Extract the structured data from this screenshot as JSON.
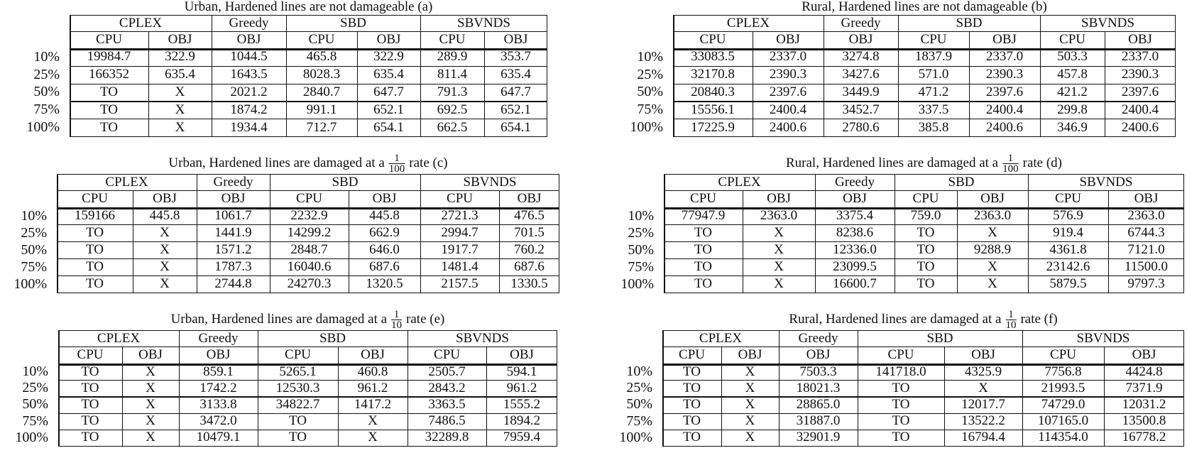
{
  "tables": [
    {
      "title_prefix": "Urban, Hardened lines are not damageable (a)",
      "fraction": null,
      "title_suffix": "",
      "methods": [
        "CPLEX",
        "Greedy",
        "SBD",
        "SBVNDS"
      ],
      "subheaders": [
        "CPU",
        "OBJ",
        "OBJ",
        "CPU",
        "OBJ",
        "CPU",
        "OBJ"
      ],
      "rows": [
        {
          "label": "10%",
          "values": [
            "19984.7",
            "322.9",
            "1044.5",
            "465.8",
            "322.9",
            "289.9",
            "353.7"
          ]
        },
        {
          "label": "25%",
          "values": [
            "166352",
            "635.4",
            "1643.5",
            "8028.3",
            "635.4",
            "811.4",
            "635.4"
          ]
        },
        {
          "label": "50%",
          "values": [
            "TO",
            "X",
            "2021.2",
            "2840.7",
            "647.7",
            "791.3",
            "647.7"
          ]
        },
        {
          "label": "75%",
          "values": [
            "TO",
            "X",
            "1874.2",
            "991.1",
            "652.1",
            "692.5",
            "652.1"
          ]
        },
        {
          "label": "100%",
          "values": [
            "TO",
            "X",
            "1934.4",
            "712.7",
            "654.1",
            "662.5",
            "654.1"
          ]
        }
      ]
    },
    {
      "title_prefix": "Rural, Hardened lines are not damageable (b)",
      "fraction": null,
      "title_suffix": "",
      "methods": [
        "CPLEX",
        "Greedy",
        "SBD",
        "SBVNDS"
      ],
      "subheaders": [
        "CPU",
        "OBJ",
        "OBJ",
        "CPU",
        "OBJ",
        "CPU",
        "OBJ"
      ],
      "rows": [
        {
          "label": "10%",
          "values": [
            "33083.5",
            "2337.0",
            "3274.8",
            "1837.9",
            "2337.0",
            "503.3",
            "2337.0"
          ]
        },
        {
          "label": "25%",
          "values": [
            "32170.8",
            "2390.3",
            "3427.6",
            "571.0",
            "2390.3",
            "457.8",
            "2390.3"
          ]
        },
        {
          "label": "50%",
          "values": [
            "20840.3",
            "2397.6",
            "3449.9",
            "471.2",
            "2397.6",
            "421.2",
            "2397.6"
          ]
        },
        {
          "label": "75%",
          "values": [
            "15556.1",
            "2400.4",
            "3452.7",
            "337.5",
            "2400.4",
            "299.8",
            "2400.4"
          ]
        },
        {
          "label": "100%",
          "values": [
            "17225.9",
            "2400.6",
            "2780.6",
            "385.8",
            "2400.6",
            "346.9",
            "2400.6"
          ]
        }
      ]
    },
    {
      "title_prefix": "Urban, Hardened lines are damaged at a",
      "fraction": {
        "num": "1",
        "den": "100"
      },
      "title_suffix": "rate (c)",
      "methods": [
        "CPLEX",
        "Greedy",
        "SBD",
        "SBVNDS"
      ],
      "subheaders": [
        "CPU",
        "OBJ",
        "OBJ",
        "CPU",
        "OBJ",
        "CPU",
        "OBJ"
      ],
      "rows": [
        {
          "label": "10%",
          "values": [
            "159166",
            "445.8",
            "1061.7",
            "2232.9",
            "445.8",
            "2721.3",
            "476.5"
          ]
        },
        {
          "label": "25%",
          "values": [
            "TO",
            "X",
            "1441.9",
            "14299.2",
            "662.9",
            "2994.7",
            "701.5"
          ]
        },
        {
          "label": "50%",
          "values": [
            "TO",
            "X",
            "1571.2",
            "2848.7",
            "646.0",
            "1917.7",
            "760.2"
          ]
        },
        {
          "label": "75%",
          "values": [
            "TO",
            "X",
            "1787.3",
            "16040.6",
            "687.6",
            "1481.4",
            "687.6"
          ]
        },
        {
          "label": "100%",
          "values": [
            "TO",
            "X",
            "2744.8",
            "24270.3",
            "1320.5",
            "2157.5",
            "1330.5"
          ]
        }
      ]
    },
    {
      "title_prefix": "Rural, Hardened lines are damaged at a",
      "fraction": {
        "num": "1",
        "den": "100"
      },
      "title_suffix": "rate (d)",
      "methods": [
        "CPLEX",
        "Greedy",
        "SBD",
        "SBVNDS"
      ],
      "subheaders": [
        "CPU",
        "OBJ",
        "OBJ",
        "CPU",
        "OBJ",
        "CPU",
        "OBJ"
      ],
      "rows": [
        {
          "label": "10%",
          "values": [
            "77947.9",
            "2363.0",
            "3375.4",
            "759.0",
            "2363.0",
            "576.9",
            "2363.0"
          ]
        },
        {
          "label": "25%",
          "values": [
            "TO",
            "X",
            "8238.6",
            "TO",
            "X",
            "919.4",
            "6744.3"
          ]
        },
        {
          "label": "50%",
          "values": [
            "TO",
            "X",
            "12336.0",
            "TO",
            "9288.9",
            "4361.8",
            "7121.0"
          ]
        },
        {
          "label": "75%",
          "values": [
            "TO",
            "X",
            "23099.5",
            "TO",
            "X",
            "23142.6",
            "11500.0"
          ]
        },
        {
          "label": "100%",
          "values": [
            "TO",
            "X",
            "16600.7",
            "TO",
            "X",
            "5879.5",
            "9797.3"
          ]
        }
      ]
    },
    {
      "title_prefix": "Urban, Hardened lines are damaged at a",
      "fraction": {
        "num": "1",
        "den": "10"
      },
      "title_suffix": "rate (e)",
      "methods": [
        "CPLEX",
        "Greedy",
        "SBD",
        "SBVNDS"
      ],
      "subheaders": [
        "CPU",
        "OBJ",
        "OBJ",
        "CPU",
        "OBJ",
        "CPU",
        "OBJ"
      ],
      "rows": [
        {
          "label": "10%",
          "values": [
            "TO",
            "X",
            "859.1",
            "5265.1",
            "460.8",
            "2505.7",
            "594.1"
          ]
        },
        {
          "label": "25%",
          "values": [
            "TO",
            "X",
            "1742.2",
            "12530.3",
            "961.2",
            "2843.2",
            "961.2"
          ]
        },
        {
          "label": "50%",
          "values": [
            "TO",
            "X",
            "3133.8",
            "34822.7",
            "1417.2",
            "3363.5",
            "1555.2"
          ]
        },
        {
          "label": "75%",
          "values": [
            "TO",
            "X",
            "3472.0",
            "TO",
            "X",
            "7486.5",
            "1894.2"
          ]
        },
        {
          "label": "100%",
          "values": [
            "TO",
            "X",
            "10479.1",
            "TO",
            "X",
            "32289.8",
            "7959.4"
          ]
        }
      ]
    },
    {
      "title_prefix": "Rural, Hardened lines are damaged at a",
      "fraction": {
        "num": "1",
        "den": "10"
      },
      "title_suffix": "rate (f)",
      "methods": [
        "CPLEX",
        "Greedy",
        "SBD",
        "SBVNDS"
      ],
      "subheaders": [
        "CPU",
        "OBJ",
        "OBJ",
        "CPU",
        "OBJ",
        "CPU",
        "OBJ"
      ],
      "rows": [
        {
          "label": "10%",
          "values": [
            "TO",
            "X",
            "7503.3",
            "141718.0",
            "4325.9",
            "7756.8",
            "4424.8"
          ]
        },
        {
          "label": "25%",
          "values": [
            "TO",
            "X",
            "18021.3",
            "TO",
            "X",
            "21993.5",
            "7371.9"
          ]
        },
        {
          "label": "50%",
          "values": [
            "TO",
            "X",
            "28865.0",
            "TO",
            "12017.7",
            "74729.0",
            "12031.2"
          ]
        },
        {
          "label": "75%",
          "values": [
            "TO",
            "X",
            "31887.0",
            "TO",
            "13522.2",
            "107165.0",
            "13500.8"
          ]
        },
        {
          "label": "100%",
          "values": [
            "TO",
            "X",
            "32901.9",
            "TO",
            "16794.4",
            "114354.0",
            "16778.2"
          ]
        }
      ]
    }
  ]
}
